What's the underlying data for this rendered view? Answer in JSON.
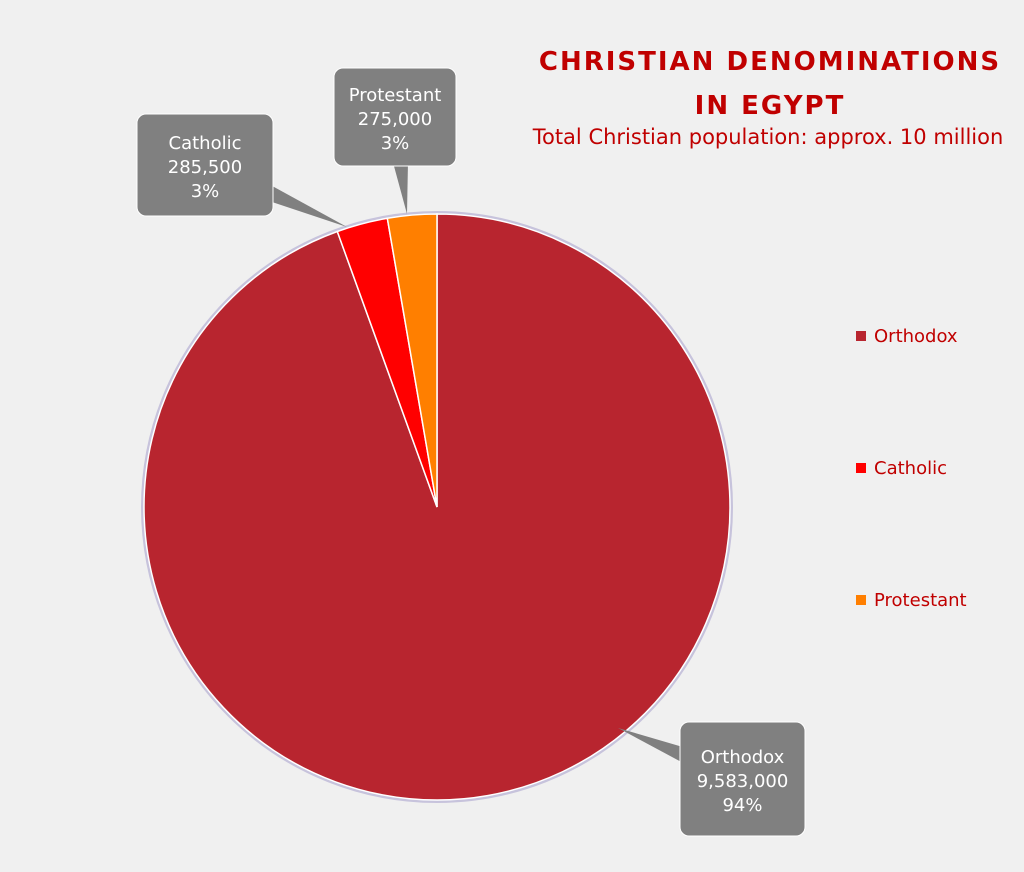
{
  "chart_data": {
    "type": "pie",
    "title": "CHRISTIAN DENOMINATIONS IN EGYPT",
    "title_lines": [
      "CHRISTIAN DENOMINATIONS",
      "IN EGYPT"
    ],
    "subtitle": "Total Christian population: approx. 10 million",
    "legend_position": "right",
    "slices": [
      {
        "label": "Orthodox",
        "value": 9583000,
        "value_label": "9,583,000",
        "percent_label": "94%",
        "color": "#b8252f"
      },
      {
        "label": "Catholic",
        "value": 285500,
        "value_label": "285,500",
        "percent_label": "3%",
        "color": "#ff0000"
      },
      {
        "label": "Protestant",
        "value": 275000,
        "value_label": "275,000",
        "percent_label": "3%",
        "color": "#ff7f00"
      }
    ]
  },
  "colors": {
    "background": "#f0f0f0",
    "title": "#c00000",
    "callout": "#808080",
    "callout_text": "#ffffff"
  }
}
